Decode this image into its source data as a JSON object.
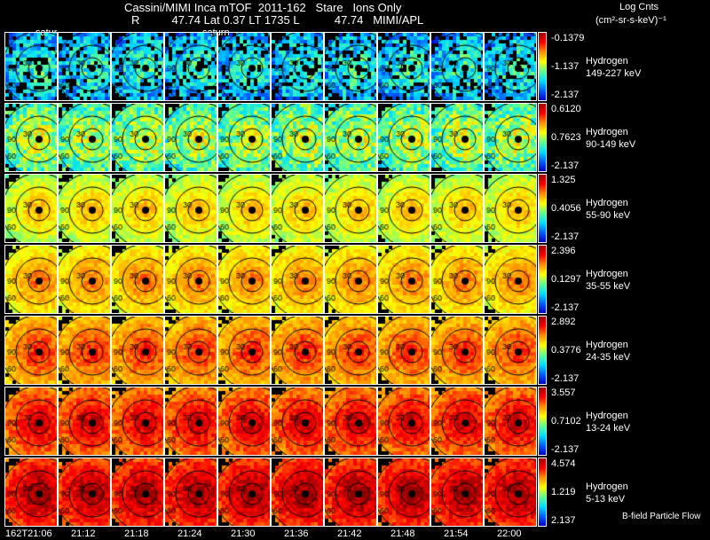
{
  "header": {
    "title": "Cassini/MIMI Inca mTOF  2011-162   Stare   Ions Only",
    "subtitle": "R          47.74 Lat 0.37 LT 1735 L           47.74   MIMI/APL",
    "saturn_labels": [
      "satur",
      "saturn"
    ]
  },
  "colorbar_title": {
    "line1": "Log Cnts",
    "line2": "(cm²-sr-s-keV)⁻¹"
  },
  "chart_data": {
    "type": "heatmap",
    "title": "Cassini/MIMI Inca mTOF 2011-162 Stare Ions Only",
    "times": [
      "162T21:06",
      "21:12",
      "21:18",
      "21:24",
      "21:30",
      "21:36",
      "21:42",
      "21:48",
      "21:54",
      "22:00"
    ],
    "rows": [
      {
        "species": "Hydrogen",
        "energy": "149-227 keV",
        "max": "-0.1379",
        "mid": "-1.137",
        "min": "-2.137"
      },
      {
        "species": "Hydrogen",
        "energy": "90-149 keV",
        "max": "0.6120",
        "mid": "0.7623",
        "min": "-2.137"
      },
      {
        "species": "Hydrogen",
        "energy": "55-90 keV",
        "max": "1.325",
        "mid": "0.4056",
        "min": "-2.137"
      },
      {
        "species": "Hydrogen",
        "energy": "35-55 keV",
        "max": "2.396",
        "mid": "0.1297",
        "min": "-2.137"
      },
      {
        "species": "Hydrogen",
        "energy": "24-35 keV",
        "max": "2.892",
        "mid": "0.3776",
        "min": "-2.137"
      },
      {
        "species": "Hydrogen",
        "energy": "13-24 keV",
        "max": "3.557",
        "mid": "0.7102",
        "min": "-2.137"
      },
      {
        "species": "Hydrogen",
        "energy": "5-13 keV",
        "max": "4.574",
        "mid": "1.219",
        "min": "2.137"
      }
    ],
    "circle_labels": [
      "90",
      "30",
      "60"
    ]
  },
  "footer": {
    "legend": "B-field Particle Flow"
  }
}
